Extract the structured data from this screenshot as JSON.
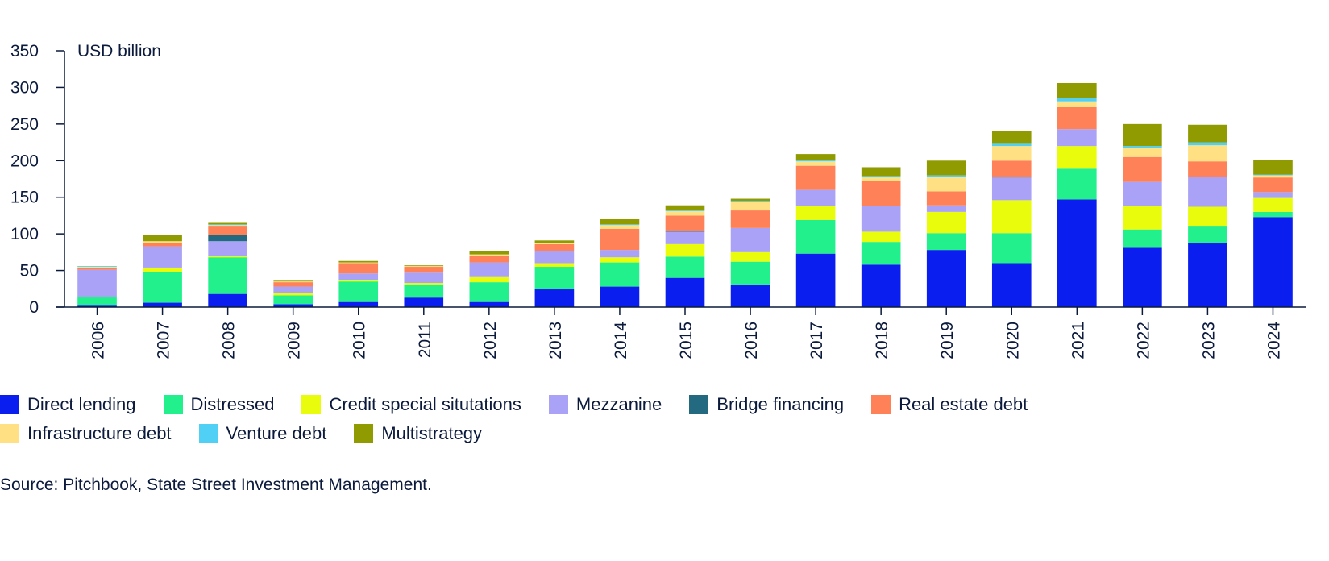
{
  "chart_data": {
    "type": "bar",
    "stacked": true,
    "ylabel": "USD billion",
    "ylim": [
      0,
      350
    ],
    "yticks": [
      0,
      50,
      100,
      150,
      200,
      250,
      300,
      350
    ],
    "categories": [
      "2006",
      "2007",
      "2008",
      "2009",
      "2010",
      "2011",
      "2012",
      "2013",
      "2014",
      "2015",
      "2016",
      "2017",
      "2018",
      "2019",
      "2020",
      "2021",
      "2022",
      "2023",
      "2024"
    ],
    "series": [
      {
        "name": "Direct lending",
        "color": "#0a1ef0",
        "values": [
          2,
          6,
          18,
          4,
          7,
          13,
          7,
          25,
          28,
          40,
          31,
          73,
          58,
          78,
          60,
          147,
          81,
          87,
          123
        ]
      },
      {
        "name": "Distressed",
        "color": "#22f08c",
        "values": [
          12,
          42,
          50,
          12,
          28,
          18,
          27,
          30,
          33,
          29,
          31,
          46,
          31,
          23,
          41,
          42,
          25,
          23,
          7
        ]
      },
      {
        "name": "Credit special situtations",
        "color": "#e8fc0c",
        "values": [
          0,
          6,
          2,
          3,
          2,
          2,
          7,
          5,
          7,
          17,
          13,
          19,
          14,
          29,
          45,
          31,
          32,
          27,
          19
        ]
      },
      {
        "name": "Mezzanine",
        "color": "#a9a2f6",
        "values": [
          37,
          29,
          20,
          9,
          9,
          14,
          20,
          16,
          10,
          17,
          33,
          22,
          35,
          9,
          31,
          23,
          33,
          41,
          8
        ]
      },
      {
        "name": "Bridge financing",
        "color": "#236a80",
        "values": [
          0,
          0,
          8,
          0,
          0,
          0,
          0,
          0,
          0,
          1,
          0,
          0,
          0,
          0,
          1,
          0,
          0,
          0,
          0
        ]
      },
      {
        "name": "Real estate debt",
        "color": "#ff8158",
        "values": [
          3,
          5,
          12,
          6,
          14,
          8,
          9,
          10,
          29,
          21,
          24,
          33,
          34,
          19,
          22,
          30,
          34,
          21,
          20
        ]
      },
      {
        "name": "Infrastructure debt",
        "color": "#ffe183",
        "values": [
          1,
          2,
          2,
          1,
          1,
          1,
          2,
          1,
          5,
          6,
          12,
          6,
          5,
          20,
          20,
          8,
          12,
          22,
          3
        ]
      },
      {
        "name": "Venture debt",
        "color": "#4fd0f4",
        "values": [
          1,
          0,
          1,
          0,
          0,
          0,
          0,
          1,
          1,
          1,
          1,
          2,
          2,
          2,
          3,
          4,
          3,
          4,
          1
        ]
      },
      {
        "name": "Multistrategy",
        "color": "#8f9b00",
        "values": [
          0,
          8,
          2,
          1,
          2,
          1,
          4,
          3,
          7,
          7,
          3,
          8,
          12,
          20,
          18,
          21,
          30,
          24,
          20
        ]
      }
    ]
  },
  "source": "Source: Pitchbook, State Street Investment Management."
}
